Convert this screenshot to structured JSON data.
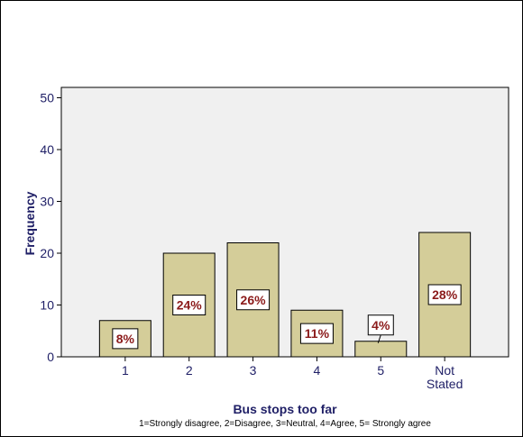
{
  "chart_data": {
    "type": "bar",
    "categories": [
      "1",
      "2",
      "3",
      "4",
      "5",
      "Not Stated"
    ],
    "category_lines": [
      [
        "1"
      ],
      [
        "2"
      ],
      [
        "3"
      ],
      [
        "4"
      ],
      [
        "5"
      ],
      [
        "Not",
        "Stated"
      ]
    ],
    "values": [
      7,
      20,
      22,
      9,
      3,
      24
    ],
    "percent_labels": [
      "8%",
      "24%",
      "26%",
      "11%",
      "4%",
      "28%"
    ],
    "xlabel": "Bus stops too far",
    "x_note": "1=Strongly disagree, 2=Disagree, 3=Neutral, 4=Agree, 5= Strongly agree",
    "ylabel": "Frequency",
    "ylim": [
      0,
      52
    ],
    "yticks": [
      0,
      10,
      20,
      30,
      40,
      50
    ],
    "grid": false,
    "colors": {
      "bar_fill": "#d4cd99",
      "plot_bg": "#f0f0f0",
      "axis_text": "#1f1f66",
      "label_text": "#8b1a1a"
    }
  }
}
